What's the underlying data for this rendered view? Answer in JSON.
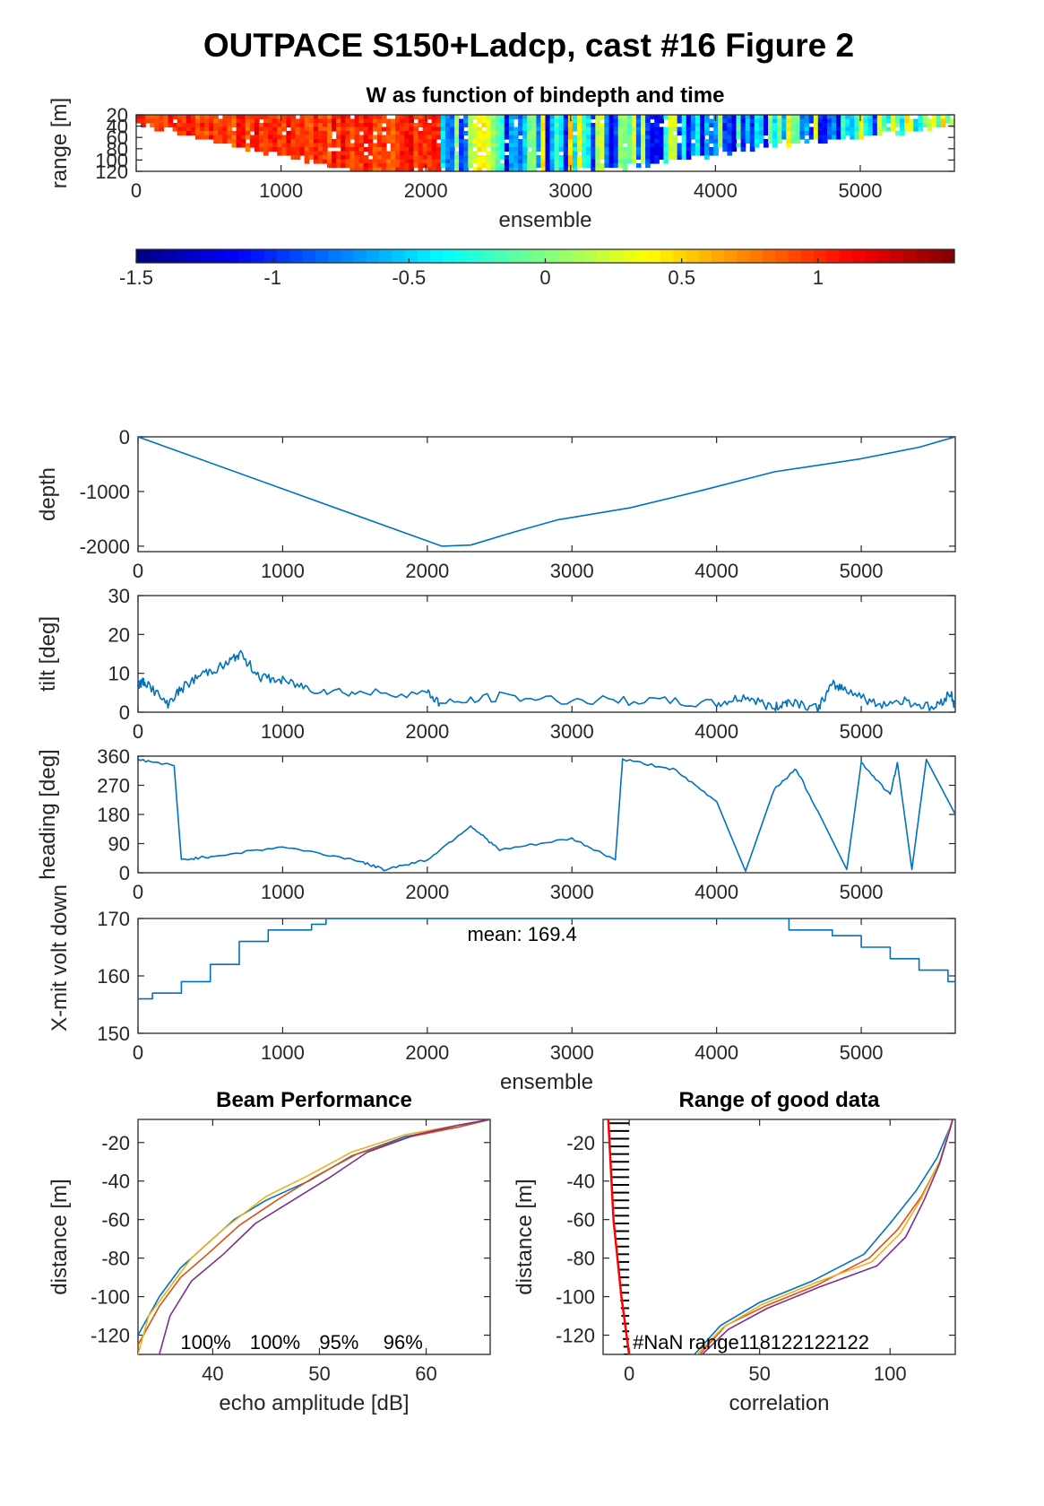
{
  "page_title": "OUTPACE S150+Ladcp, cast #16 Figure 2",
  "colors": {
    "line": "#0072bd",
    "orange": "#d95319",
    "yellow": "#edb120",
    "purple": "#7e2f8e",
    "red": "#ff0000",
    "axis": "#262626"
  },
  "chart_data": [
    {
      "type": "heatmap",
      "title": "W as function of bindepth and time",
      "xlabel": "ensemble",
      "ylabel": "range [m]",
      "xlim": [
        0,
        5650
      ],
      "ylim": [
        120,
        20
      ],
      "xticks": [
        "0",
        "1000",
        "2000",
        "3000",
        "4000",
        "5000"
      ],
      "yticks": [
        "20",
        "40",
        "60",
        "80",
        "100",
        "120"
      ],
      "colorbar": {
        "clim": [
          -1.5,
          1.5
        ],
        "ticks": [
          "-1.5",
          "-1",
          "-0.5",
          "0",
          "0.5",
          "1"
        ],
        "colormap": "jet"
      }
    },
    {
      "type": "line",
      "xlabel": "",
      "ylabel": "depth",
      "xlim": [
        0,
        5650
      ],
      "ylim": [
        -2100,
        0
      ],
      "xticks": [
        "0",
        "1000",
        "2000",
        "3000",
        "4000",
        "5000"
      ],
      "yticks": [
        "0",
        "-1000",
        "-2000"
      ],
      "x": [
        0,
        2100,
        2300,
        2600,
        2900,
        3400,
        3900,
        4400,
        5000,
        5400,
        5650
      ],
      "y": [
        0,
        -2000,
        -1980,
        -1740,
        -1520,
        -1300,
        -980,
        -640,
        -400,
        -190,
        0
      ]
    },
    {
      "type": "line",
      "xlabel": "",
      "ylabel": "tilt [deg]",
      "xlim": [
        0,
        5650
      ],
      "ylim": [
        0,
        30
      ],
      "xticks": [
        "0",
        "1000",
        "2000",
        "3000",
        "4000",
        "5000"
      ],
      "yticks": [
        "0",
        "10",
        "20",
        "30"
      ],
      "x": [
        0,
        50,
        200,
        300,
        450,
        600,
        700,
        850,
        1000,
        1200,
        1500,
        2000,
        2100,
        2500,
        3000,
        3500,
        4000,
        4200,
        4400,
        4500,
        4700,
        4800,
        4900,
        5100,
        5300,
        5500,
        5620,
        5650
      ],
      "y": [
        7,
        8,
        2,
        6,
        10,
        12,
        15,
        9,
        8,
        6,
        5,
        5,
        2,
        4,
        3,
        3,
        2,
        4,
        1,
        3,
        1,
        7,
        6,
        2,
        3,
        1,
        5,
        1
      ]
    },
    {
      "type": "line",
      "xlabel": "",
      "ylabel": "heading [deg]",
      "xlim": [
        0,
        5650
      ],
      "ylim": [
        0,
        360
      ],
      "xticks": [
        "0",
        "1000",
        "2000",
        "3000",
        "4000",
        "5000"
      ],
      "yticks": [
        "0",
        "90",
        "180",
        "270",
        "360"
      ],
      "x": [
        0,
        250,
        300,
        500,
        1000,
        1500,
        1700,
        2000,
        2300,
        2500,
        3000,
        3300,
        3350,
        3700,
        4000,
        4200,
        4400,
        4550,
        4700,
        4900,
        5000,
        5200,
        5250,
        5350,
        5450,
        5650
      ],
      "y": [
        350,
        330,
        40,
        50,
        80,
        40,
        10,
        40,
        145,
        70,
        105,
        40,
        350,
        320,
        220,
        5,
        260,
        320,
        190,
        10,
        340,
        240,
        340,
        10,
        350,
        180
      ]
    },
    {
      "type": "line",
      "xlabel": "ensemble",
      "ylabel": "X-mit volt down",
      "xlim": [
        0,
        5650
      ],
      "ylim": [
        150,
        170
      ],
      "xticks": [
        "0",
        "1000",
        "2000",
        "3000",
        "4000",
        "5000"
      ],
      "yticks": [
        "150",
        "160",
        "170"
      ],
      "annotation": "mean: 169.4",
      "x": [
        0,
        100,
        300,
        500,
        700,
        900,
        1200,
        1300,
        4000,
        4500,
        4800,
        5000,
        5200,
        5400,
        5600,
        5650
      ],
      "y": [
        156,
        157,
        159,
        162,
        166,
        168,
        169,
        170,
        170,
        168,
        167,
        165,
        163,
        161,
        159,
        159
      ]
    },
    {
      "type": "line",
      "title": "Beam Performance",
      "xlabel": "echo amplitude [dB]",
      "ylabel": "distance [m]",
      "xlim": [
        33,
        66
      ],
      "ylim": [
        -130,
        -8
      ],
      "xticks": [
        "40",
        "50",
        "60"
      ],
      "yticks": [
        "-20",
        "-40",
        "-60",
        "-80",
        "-100",
        "-120"
      ],
      "beam_percent": [
        "100%",
        "100%",
        "95%",
        "96%"
      ],
      "series": [
        {
          "x": [
            33,
            35,
            37,
            39,
            42,
            45,
            49,
            53,
            58,
            63,
            66
          ],
          "y": [
            -120,
            -100,
            -85,
            -75,
            -60,
            -50,
            -40,
            -27,
            -17,
            -12,
            -8
          ]
        },
        {
          "x": [
            33,
            35,
            37,
            39.5,
            42.5,
            46,
            49.5,
            53.5,
            58.5,
            63,
            66
          ],
          "y": [
            -125,
            -105,
            -90,
            -78,
            -63,
            -50,
            -38,
            -26,
            -17,
            -12,
            -8
          ]
        },
        {
          "x": [
            33,
            34,
            36,
            38,
            41,
            45,
            49,
            53,
            58,
            63,
            66
          ],
          "y": [
            -130,
            -110,
            -95,
            -80,
            -65,
            -48,
            -37,
            -25,
            -16,
            -11,
            -8
          ]
        },
        {
          "x": [
            35,
            36,
            38,
            41,
            44,
            47.5,
            51,
            54.5,
            59,
            63,
            66
          ],
          "y": [
            -130,
            -110,
            -92,
            -78,
            -62,
            -50,
            -38,
            -25,
            -16,
            -11,
            -8
          ]
        }
      ]
    },
    {
      "type": "line",
      "title": "Range of good data",
      "xlabel": "correlation",
      "ylabel": "distance [m]",
      "xlim": [
        -10,
        125
      ],
      "ylim": [
        -130,
        -8
      ],
      "xticks": [
        "0",
        "50",
        "100"
      ],
      "yticks": [
        "-20",
        "-40",
        "-60",
        "-80",
        "-100",
        "-120"
      ],
      "annotation": "#NaN range118122122122",
      "series": [
        {
          "x": [
            25,
            35,
            50,
            70,
            90,
            100,
            110,
            118,
            123,
            124,
            110,
            100
          ],
          "y": [
            -130,
            -115,
            -103,
            -92,
            -78,
            -62,
            -45,
            -28,
            -12,
            -8,
            -7,
            -7
          ]
        },
        {
          "x": [
            27,
            37,
            52,
            72,
            92,
            103,
            112,
            119,
            123,
            124,
            110,
            100
          ],
          "y": [
            -130,
            -115,
            -105,
            -94,
            -80,
            -65,
            -48,
            -30,
            -13,
            -8,
            -7,
            -7
          ]
        },
        {
          "x": [
            26,
            36,
            51,
            71,
            93,
            104,
            112,
            119,
            123,
            124,
            110,
            100
          ],
          "y": [
            -130,
            -116,
            -104,
            -93,
            -82,
            -67,
            -49,
            -30,
            -12,
            -8,
            -7,
            -7
          ]
        },
        {
          "x": [
            28,
            38,
            53,
            73,
            95,
            106,
            113,
            119,
            123,
            124,
            110,
            100
          ],
          "y": [
            -130,
            -117,
            -106,
            -95,
            -84,
            -69,
            -50,
            -31,
            -13,
            -8,
            -7,
            -7
          ]
        },
        {
          "x": [
            -8,
            -6,
            -3,
            0
          ],
          "y": [
            -8,
            -60,
            -100,
            -130
          ]
        }
      ]
    }
  ]
}
